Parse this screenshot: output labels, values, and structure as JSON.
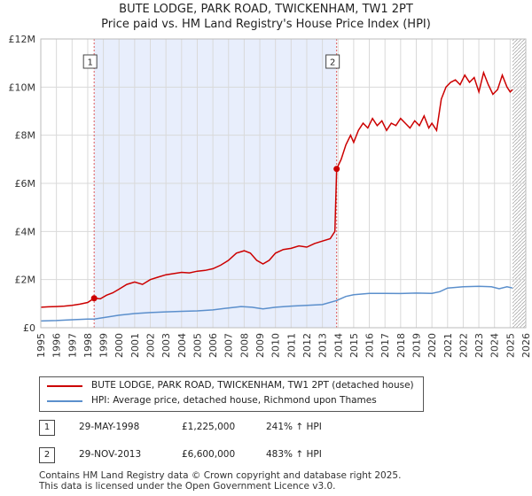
{
  "title": "BUTE LODGE, PARK ROAD, TWICKENHAM, TW1 2PT",
  "subtitle": "Price paid vs. HM Land Registry's House Price Index (HPI)",
  "colors": {
    "red": "#cc0000",
    "blue": "#5b8fcc",
    "shade": "#e8eefc",
    "grid": "#d9d9d9",
    "hatch": "#aaaaaa"
  },
  "chart_data": {
    "type": "line",
    "title": "BUTE LODGE, PARK ROAD, TWICKENHAM, TW1 2PT",
    "subtitle": "Price paid vs. HM Land Registry's House Price Index (HPI)",
    "xlim": [
      1995,
      2026
    ],
    "ylim": [
      0,
      12000000
    ],
    "xticks": [
      "1995",
      "1996",
      "1997",
      "1998",
      "1999",
      "2000",
      "2001",
      "2002",
      "2003",
      "2004",
      "2005",
      "2006",
      "2007",
      "2008",
      "2009",
      "2010",
      "2011",
      "2012",
      "2013",
      "2014",
      "2015",
      "2016",
      "2017",
      "2018",
      "2019",
      "2020",
      "2021",
      "2022",
      "2023",
      "2024",
      "2025",
      "2026"
    ],
    "yticks": [
      {
        "value": 0,
        "label": "£0"
      },
      {
        "value": 2000000,
        "label": "£2M"
      },
      {
        "value": 4000000,
        "label": "£4M"
      },
      {
        "value": 6000000,
        "label": "£6M"
      },
      {
        "value": 8000000,
        "label": "£8M"
      },
      {
        "value": 10000000,
        "label": "£10M"
      },
      {
        "value": 12000000,
        "label": "£12M"
      }
    ],
    "shaded_range": [
      1998.41,
      2013.91
    ],
    "hatched_from": 2025.15,
    "series": [
      {
        "name": "BUTE LODGE, PARK ROAD, TWICKENHAM, TW1 2PT (detached house)",
        "color": "#cc0000",
        "x": [
          1995.0,
          1995.5,
          1996.0,
          1996.5,
          1997.0,
          1997.5,
          1998.0,
          1998.41,
          1998.8,
          1999.2,
          1999.6,
          2000.0,
          2000.5,
          2001.0,
          2001.5,
          2002.0,
          2002.5,
          2003.0,
          2003.5,
          2004.0,
          2004.5,
          2005.0,
          2005.5,
          2006.0,
          2006.5,
          2007.0,
          2007.5,
          2008.0,
          2008.4,
          2008.8,
          2009.2,
          2009.6,
          2010.0,
          2010.5,
          2011.0,
          2011.5,
          2012.0,
          2012.5,
          2013.0,
          2013.5,
          2013.8,
          2013.91,
          2014.2,
          2014.5,
          2014.8,
          2015.0,
          2015.3,
          2015.6,
          2015.9,
          2016.2,
          2016.5,
          2016.8,
          2017.1,
          2017.4,
          2017.7,
          2018.0,
          2018.3,
          2018.6,
          2018.9,
          2019.2,
          2019.5,
          2019.8,
          2020.0,
          2020.3,
          2020.6,
          2020.9,
          2021.2,
          2021.5,
          2021.8,
          2022.1,
          2022.4,
          2022.7,
          2023.0,
          2023.3,
          2023.6,
          2023.9,
          2024.2,
          2024.5,
          2024.8,
          2025.0,
          2025.15
        ],
        "values": [
          850000,
          870000,
          880000,
          900000,
          930000,
          980000,
          1050000,
          1225000,
          1200000,
          1350000,
          1450000,
          1600000,
          1800000,
          1900000,
          1800000,
          2000000,
          2100000,
          2200000,
          2250000,
          2300000,
          2280000,
          2350000,
          2380000,
          2450000,
          2600000,
          2800000,
          3100000,
          3200000,
          3100000,
          2800000,
          2650000,
          2800000,
          3100000,
          3250000,
          3300000,
          3400000,
          3350000,
          3500000,
          3600000,
          3700000,
          4000000,
          6600000,
          7000000,
          7600000,
          8000000,
          7700000,
          8200000,
          8500000,
          8300000,
          8700000,
          8400000,
          8600000,
          8200000,
          8500000,
          8400000,
          8700000,
          8500000,
          8300000,
          8600000,
          8400000,
          8800000,
          8300000,
          8500000,
          8200000,
          9500000,
          10000000,
          10200000,
          10300000,
          10100000,
          10500000,
          10200000,
          10400000,
          9800000,
          10600000,
          10100000,
          9700000,
          9900000,
          10500000,
          10000000,
          9800000,
          9900000
        ]
      },
      {
        "name": "HPI: Average price, detached house, Richmond upon Thames",
        "color": "#5b8fcc",
        "x": [
          1995.0,
          1996.0,
          1997.0,
          1998.0,
          1998.41,
          1999.0,
          2000.0,
          2001.0,
          2002.0,
          2003.0,
          2004.0,
          2005.0,
          2006.0,
          2007.0,
          2007.8,
          2008.5,
          2009.2,
          2010.0,
          2011.0,
          2012.0,
          2013.0,
          2013.91,
          2014.5,
          2015.0,
          2016.0,
          2017.0,
          2018.0,
          2019.0,
          2020.0,
          2020.5,
          2021.0,
          2022.0,
          2023.0,
          2023.8,
          2024.3,
          2024.8,
          2025.15
        ],
        "values": [
          280000,
          300000,
          330000,
          360000,
          360000,
          420000,
          520000,
          590000,
          630000,
          660000,
          680000,
          700000,
          740000,
          820000,
          880000,
          850000,
          780000,
          850000,
          900000,
          930000,
          960000,
          1130000,
          1300000,
          1370000,
          1430000,
          1430000,
          1420000,
          1440000,
          1430000,
          1500000,
          1650000,
          1700000,
          1720000,
          1700000,
          1620000,
          1700000,
          1650000
        ]
      }
    ],
    "markers": [
      {
        "label": "1",
        "x": 1998.41,
        "value": 1225000
      },
      {
        "label": "2",
        "x": 2013.91,
        "value": 6600000
      }
    ]
  },
  "legend": {
    "property_label": "BUTE LODGE, PARK ROAD, TWICKENHAM, TW1 2PT (detached house)",
    "hpi_label": "HPI: Average price, detached house, Richmond upon Thames"
  },
  "sales": [
    {
      "num": "1",
      "date": "29-MAY-1998",
      "price": "£1,225,000",
      "hpi": "241% ↑ HPI"
    },
    {
      "num": "2",
      "date": "29-NOV-2013",
      "price": "£6,600,000",
      "hpi": "483% ↑ HPI"
    }
  ],
  "footer": {
    "line1": "Contains HM Land Registry data © Crown copyright and database right 2025.",
    "line2": "This data is licensed under the Open Government Licence v3.0."
  }
}
